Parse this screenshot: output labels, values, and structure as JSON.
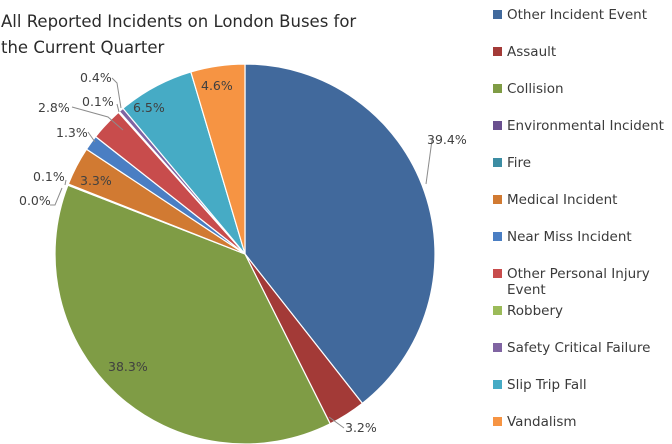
{
  "chart_data": {
    "type": "pie",
    "title_lines": [
      "All Reported Incidents on London Buses for",
      "the Current Quarter"
    ],
    "legend_position": "right",
    "slices": [
      {
        "label": "Other Incident Event",
        "legend": [
          "Other Incident Event"
        ],
        "value": 39.4,
        "pct_label": "39.4%",
        "color": "#41699c"
      },
      {
        "label": "Assault",
        "legend": [
          "Assault"
        ],
        "value": 3.2,
        "pct_label": "3.2%",
        "color": "#a33a37"
      },
      {
        "label": "Collision",
        "legend": [
          "Collision"
        ],
        "value": 38.3,
        "pct_label": "38.3%",
        "color": "#7f9c45"
      },
      {
        "label": "Environmental Incident",
        "legend": [
          "Environmental Incident"
        ],
        "value": 0.0,
        "pct_label": "0.0%",
        "color": "#6a508f"
      },
      {
        "label": "Fire",
        "legend": [
          "Fire"
        ],
        "value": 0.1,
        "pct_label": "0.1%",
        "color": "#3c8da3"
      },
      {
        "label": "Medical Incident",
        "legend": [
          "Medical Incident"
        ],
        "value": 3.3,
        "pct_label": "3.3%",
        "color": "#d17a32"
      },
      {
        "label": "Near Miss Incident",
        "legend": [
          "Near Miss Incident"
        ],
        "value": 1.3,
        "pct_label": "1.3%",
        "color": "#4a7ec3"
      },
      {
        "label": "Other Personal Injury Event",
        "legend": [
          "Other Personal Injury",
          "Event"
        ],
        "value": 2.8,
        "pct_label": "2.8%",
        "color": "#c84c4c"
      },
      {
        "label": "Robbery",
        "legend": [
          "Robbery"
        ],
        "value": 0.1,
        "pct_label": "0.1%",
        "color": "#9bbb59"
      },
      {
        "label": "Safety Critical Failure",
        "legend": [
          "Safety Critical Failure"
        ],
        "value": 0.4,
        "pct_label": "0.4%",
        "color": "#8064a2"
      },
      {
        "label": "Slip Trip Fall",
        "legend": [
          "Slip Trip Fall"
        ],
        "value": 6.5,
        "pct_label": "6.5%",
        "color": "#46abc5"
      },
      {
        "label": "Vandalism",
        "legend": [
          "Vandalism"
        ],
        "value": 4.6,
        "pct_label": "4.6%",
        "color": "#f69443"
      }
    ]
  }
}
